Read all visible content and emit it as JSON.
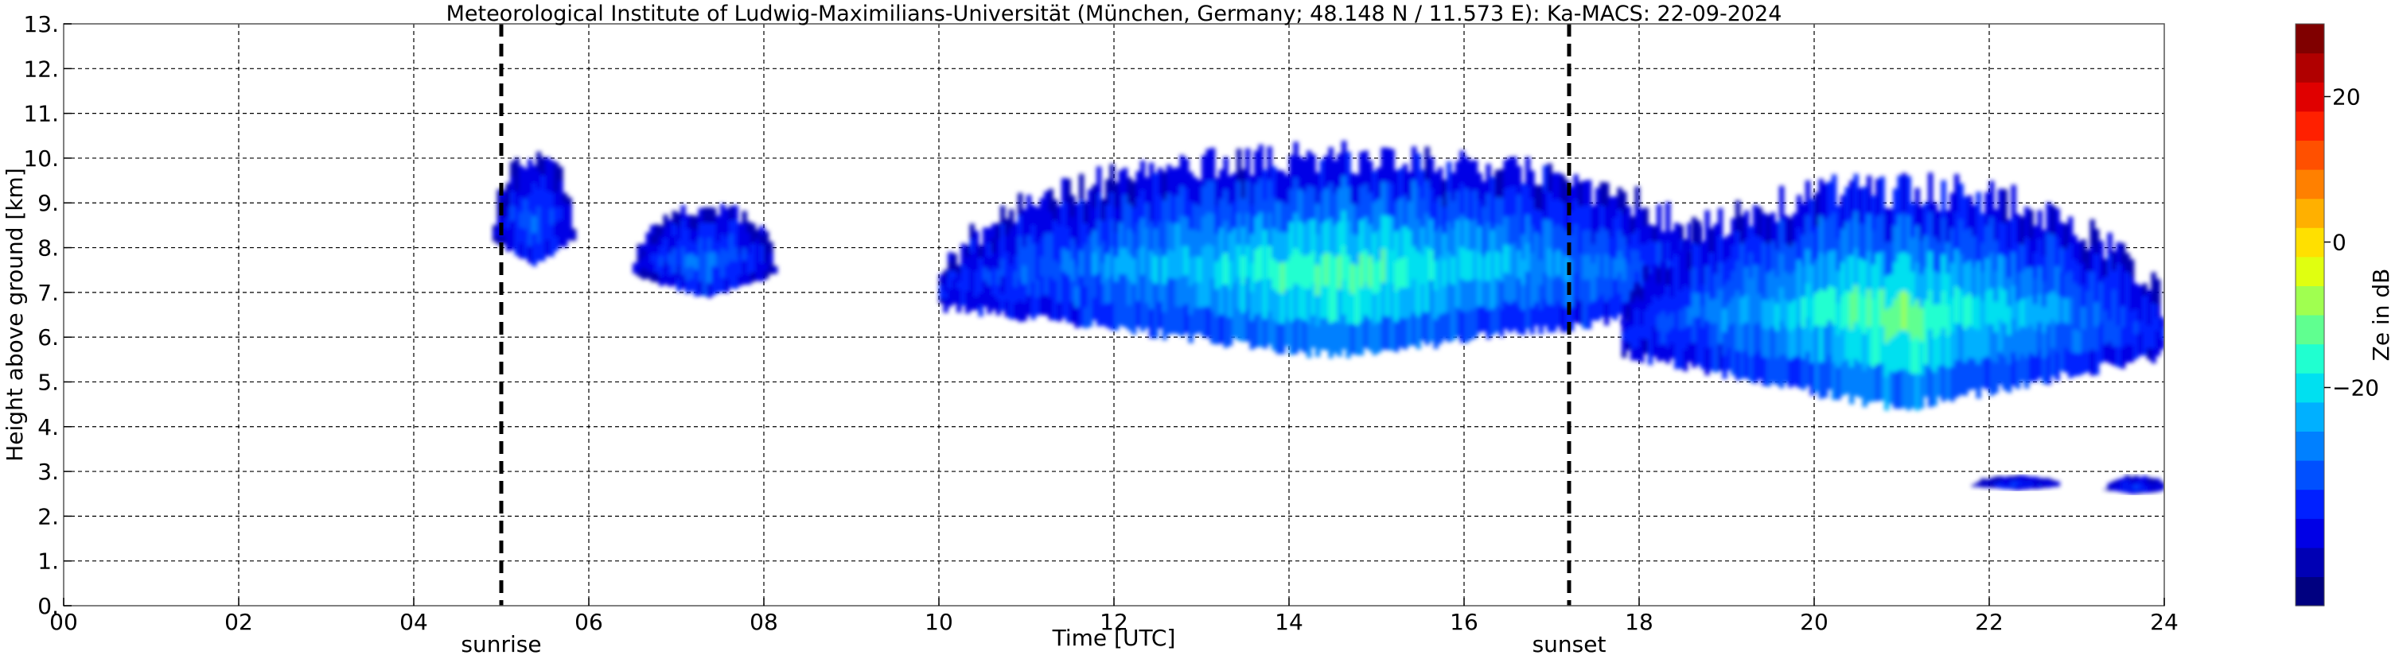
{
  "chart_data": {
    "type": "heatmap",
    "title": "Meteorological Institute of Ludwig-Maximilians-Universität (München, Germany; 48.148 N / 11.573 E):    Ka-MACS: 22-09-2024",
    "xlabel": "Time [UTC]",
    "ylabel": "Height above ground [km]",
    "xlim": [
      0,
      24
    ],
    "ylim": [
      0,
      13
    ],
    "x_ticks": [
      "00",
      "02",
      "04",
      "06",
      "08",
      "10",
      "12",
      "14",
      "16",
      "18",
      "20",
      "22",
      "24"
    ],
    "y_ticks": [
      "0.",
      "1.",
      "2.",
      "3.",
      "4.",
      "5.",
      "6.",
      "7.",
      "8.",
      "9.",
      "10.",
      "11.",
      "12.",
      "13."
    ],
    "grid": true,
    "annotations": [
      {
        "label": "sunrise",
        "x": 5.0,
        "style": "dashed-vertical-line"
      },
      {
        "label": "sunset",
        "x": 17.2,
        "style": "dashed-vertical-line"
      }
    ],
    "colorbar": {
      "label": "Ze in dB",
      "range": [
        -50,
        30
      ],
      "ticks": [
        "20",
        "0",
        "−20"
      ],
      "tick_values": [
        20,
        0,
        -20
      ],
      "colors": [
        "#000080",
        "#0000b4",
        "#0000e6",
        "#0020ff",
        "#0050ff",
        "#0080ff",
        "#00b0ff",
        "#00e0f0",
        "#20ffd0",
        "#60ff90",
        "#a0ff50",
        "#e0ff10",
        "#ffe000",
        "#ffb000",
        "#ff8000",
        "#ff5000",
        "#ff2000",
        "#e00000",
        "#b00000",
        "#800000"
      ]
    },
    "echoes": [
      {
        "x_start": 4.9,
        "x_end": 5.8,
        "top": 10.0,
        "base": 7.6,
        "core_dbz": -30
      },
      {
        "x_start": 6.5,
        "x_end": 8.1,
        "top": 8.9,
        "base": 6.9,
        "core_dbz": -28
      },
      {
        "x_start": 10.0,
        "x_end": 19.0,
        "top": 10.0,
        "base": 5.6,
        "core_dbz": -12
      },
      {
        "x_start": 17.8,
        "x_end": 24.0,
        "top": 9.3,
        "base": 4.4,
        "core_dbz": -10
      },
      {
        "x_start": 21.8,
        "x_end": 22.8,
        "top": 2.9,
        "base": 2.6,
        "core_dbz": -35
      },
      {
        "x_start": 23.3,
        "x_end": 24.0,
        "top": 2.9,
        "base": 2.5,
        "core_dbz": -35
      }
    ]
  }
}
